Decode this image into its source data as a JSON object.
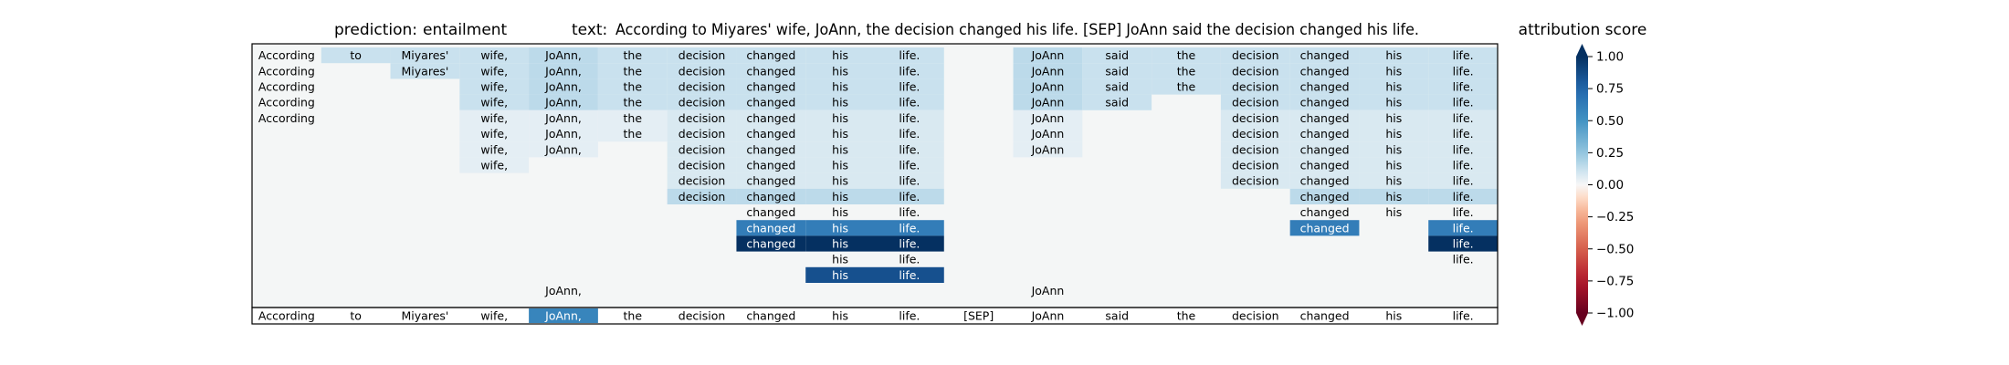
{
  "header": {
    "prediction_label": "prediction:",
    "prediction_value": "entailment",
    "text_label": "text:",
    "text_value": "According to Miyares' wife, JoAnn, the decision changed his life. [SEP] JoAnn said the decision changed his life."
  },
  "colorbar": {
    "title": "attribution score",
    "ticks": [
      "1.00",
      "0.75",
      "0.50",
      "0.25",
      "0.00",
      "−0.25",
      "−0.50",
      "−0.75",
      "−1.00"
    ],
    "range": [
      -1,
      1
    ],
    "colormap": "RdBu",
    "extend": "both"
  },
  "chart_data": {
    "type": "heatmap",
    "title": "",
    "xlabel": "",
    "ylabel": "",
    "tokens": [
      "According",
      "to",
      "Miyares'",
      "wife,",
      "JoAnn,",
      "the",
      "decision",
      "changed",
      "his",
      "life.",
      "[SEP]",
      "JoAnn",
      "said",
      "the",
      "decision",
      "changed",
      "his",
      "life."
    ],
    "background_color": "#f4f6f6",
    "rows": [
      [
        0.02,
        0.12,
        0.12,
        0.12,
        0.15,
        0.12,
        0.12,
        0.12,
        0.12,
        0.12,
        null,
        0.15,
        0.12,
        0.12,
        0.12,
        0.12,
        0.12,
        0.12
      ],
      [
        0.02,
        null,
        0.12,
        0.12,
        0.15,
        0.12,
        0.12,
        0.12,
        0.12,
        0.12,
        null,
        0.15,
        0.12,
        0.12,
        0.12,
        0.12,
        0.12,
        0.12
      ],
      [
        0.02,
        null,
        null,
        0.12,
        0.15,
        0.12,
        0.12,
        0.12,
        0.12,
        0.12,
        null,
        0.15,
        0.12,
        0.12,
        0.12,
        0.12,
        0.12,
        0.12
      ],
      [
        0.02,
        null,
        null,
        0.12,
        0.15,
        0.12,
        0.12,
        0.12,
        0.12,
        0.12,
        null,
        0.15,
        0.12,
        null,
        0.12,
        0.12,
        0.12,
        0.12
      ],
      [
        0.02,
        null,
        null,
        0.05,
        0.05,
        0.05,
        0.08,
        0.08,
        0.08,
        0.08,
        null,
        0.05,
        null,
        null,
        0.08,
        0.08,
        0.08,
        0.08
      ],
      [
        null,
        null,
        null,
        0.05,
        0.05,
        0.05,
        0.08,
        0.08,
        0.08,
        0.08,
        null,
        0.05,
        null,
        null,
        0.08,
        0.08,
        0.08,
        0.08
      ],
      [
        null,
        null,
        null,
        0.05,
        0.05,
        null,
        0.08,
        0.08,
        0.08,
        0.08,
        null,
        0.05,
        null,
        null,
        0.08,
        0.08,
        0.08,
        0.08
      ],
      [
        null,
        null,
        null,
        0.05,
        null,
        null,
        0.08,
        0.08,
        0.08,
        0.08,
        null,
        null,
        null,
        null,
        0.08,
        0.08,
        0.08,
        0.08
      ],
      [
        null,
        null,
        null,
        null,
        null,
        null,
        0.08,
        0.08,
        0.08,
        0.08,
        null,
        null,
        null,
        null,
        0.08,
        0.08,
        0.08,
        0.08
      ],
      [
        null,
        null,
        null,
        null,
        null,
        null,
        0.15,
        0.15,
        0.15,
        0.15,
        null,
        null,
        null,
        null,
        null,
        0.15,
        0.15,
        0.15
      ],
      [
        null,
        null,
        null,
        null,
        null,
        null,
        null,
        0.03,
        0.03,
        0.03,
        null,
        null,
        null,
        null,
        null,
        0.03,
        0.03,
        0.03
      ],
      [
        null,
        null,
        null,
        null,
        null,
        null,
        null,
        0.62,
        0.62,
        0.62,
        null,
        null,
        null,
        null,
        null,
        0.62,
        null,
        0.62
      ],
      [
        null,
        null,
        null,
        null,
        null,
        null,
        null,
        1.0,
        1.0,
        1.0,
        null,
        null,
        null,
        null,
        null,
        null,
        null,
        1.0
      ],
      [
        null,
        null,
        null,
        null,
        null,
        null,
        null,
        null,
        0.02,
        0.02,
        null,
        null,
        null,
        null,
        null,
        null,
        null,
        0.02
      ],
      [
        null,
        null,
        null,
        null,
        null,
        null,
        null,
        null,
        0.85,
        0.85,
        null,
        null,
        null,
        null,
        null,
        null,
        null,
        null
      ],
      [
        null,
        null,
        null,
        null,
        0.0,
        null,
        null,
        null,
        null,
        null,
        null,
        0.0,
        null,
        null,
        null,
        null,
        null,
        null
      ]
    ],
    "bottom_row": [
      0.0,
      0.0,
      0.0,
      0.0,
      0.58,
      0.0,
      0.0,
      0.0,
      0.0,
      0.0,
      0.0,
      0.0,
      0.0,
      0.0,
      0.0,
      0.0,
      0.0,
      0.0
    ]
  }
}
